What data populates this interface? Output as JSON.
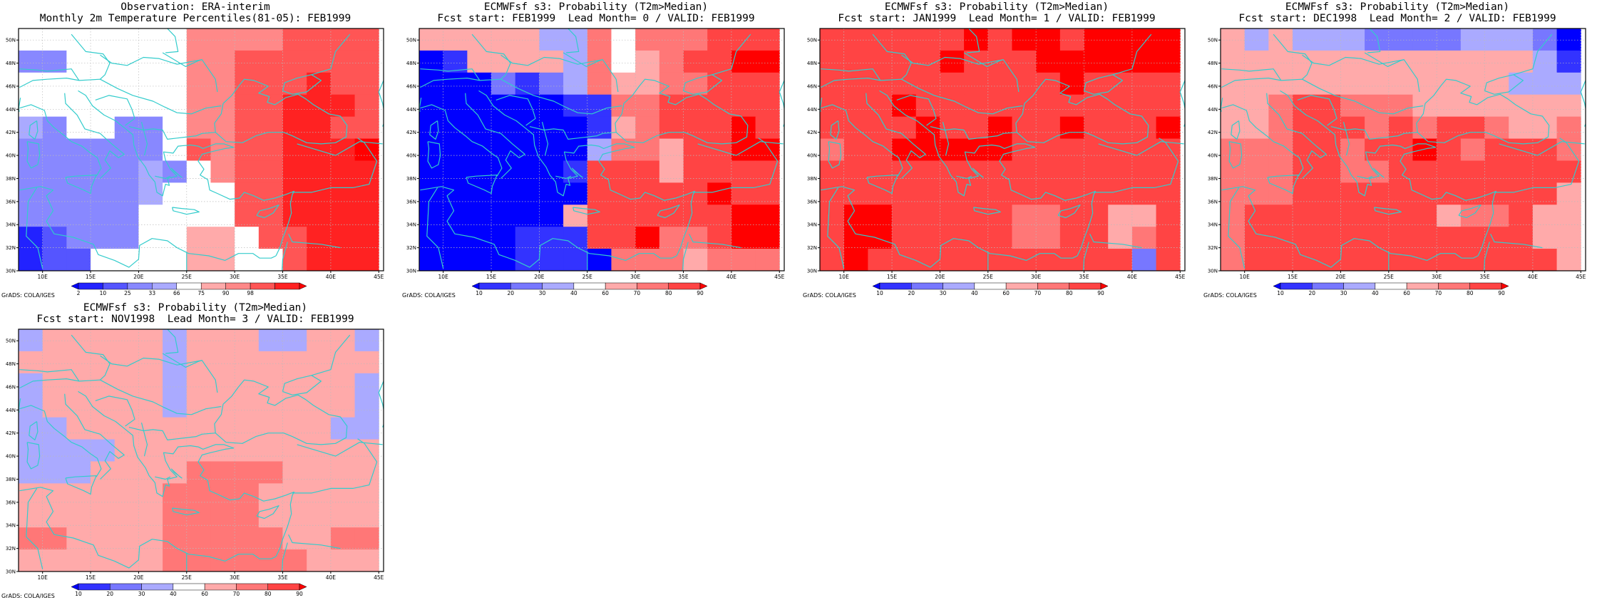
{
  "credit": "GrADS: COLA/IGES",
  "colors": {
    "coast": "#33cccc",
    "grid": "#bbbbbb",
    "border": "#000000",
    "prob_bins": [
      "#0000ff",
      "#3333ff",
      "#7777ff",
      "#aaaaff",
      "#ffffff",
      "#ffaaaa",
      "#ff7777",
      "#ff4444",
      "#ff0000"
    ],
    "pct_bins": [
      "#0000ff",
      "#2222ff",
      "#5555ff",
      "#8888ff",
      "#aaaaff",
      "#ffffff",
      "#ffaaaa",
      "#ff8888",
      "#ff5555",
      "#ff2222",
      "#ff0000"
    ]
  },
  "map": {
    "lon_ticks": [
      "10E",
      "15E",
      "20E",
      "25E",
      "30E",
      "35E",
      "40E",
      "45E"
    ],
    "lat_ticks": [
      "50N",
      "48N",
      "46N",
      "44N",
      "42N",
      "40N",
      "38N",
      "36N",
      "34N",
      "32N",
      "30N"
    ],
    "lon_range": [
      7.5,
      45.5
    ],
    "lat_range": [
      30,
      51
    ],
    "cell_size_deg": 2.5
  },
  "legends": {
    "obs": [
      "2",
      "10",
      "25",
      "33",
      "66",
      "75",
      "90",
      "98"
    ],
    "prob": [
      "10",
      "20",
      "30",
      "40",
      "60",
      "70",
      "80",
      "90"
    ]
  },
  "panels": [
    {
      "title1": "Observation: ERA-interim",
      "title2": "Monthly 2m Temperature Percentiles(81-05): FEB1999",
      "legend": "obs",
      "palette": "pct_bins",
      "cells": [
        [
          5,
          5,
          5,
          5,
          5,
          5,
          5,
          7,
          7,
          7,
          7,
          8,
          8,
          8,
          8
        ],
        [
          3,
          3,
          5,
          5,
          5,
          5,
          5,
          7,
          7,
          8,
          8,
          8,
          8,
          8,
          8
        ],
        [
          5,
          5,
          5,
          5,
          5,
          5,
          5,
          7,
          7,
          8,
          8,
          8,
          9,
          8,
          8
        ],
        [
          5,
          5,
          5,
          5,
          5,
          5,
          5,
          7,
          7,
          8,
          8,
          9,
          9,
          9,
          8
        ],
        [
          4,
          3,
          5,
          5,
          3,
          3,
          5,
          7,
          7,
          8,
          8,
          9,
          9,
          8,
          8
        ],
        [
          3,
          3,
          3,
          3,
          3,
          3,
          5,
          8,
          7,
          8,
          8,
          9,
          9,
          9,
          10
        ],
        [
          3,
          3,
          3,
          3,
          3,
          4,
          3,
          5,
          7,
          8,
          8,
          9,
          9,
          9,
          9
        ],
        [
          3,
          3,
          3,
          3,
          3,
          4,
          5,
          5,
          5,
          8,
          8,
          9,
          9,
          9,
          9
        ],
        [
          3,
          3,
          3,
          3,
          3,
          5,
          5,
          5,
          5,
          8,
          8,
          9,
          9,
          9,
          9
        ],
        [
          1,
          2,
          3,
          3,
          3,
          5,
          5,
          6,
          6,
          5,
          8,
          8,
          9,
          9,
          9
        ],
        [
          1,
          2,
          2,
          5,
          5,
          5,
          5,
          6,
          6,
          5,
          5,
          8,
          9,
          9,
          9
        ]
      ]
    },
    {
      "title1": "ECMWFsf s3: Probability (T2m>Median)",
      "title2": "Fcst start: FEB1999  Lead Month= 0 / VALID: FEB1999",
      "legend": "prob",
      "palette": "prob_bins",
      "cells": [
        [
          5,
          5,
          5,
          5,
          5,
          3,
          3,
          6,
          4,
          6,
          6,
          6,
          7,
          7,
          7
        ],
        [
          0,
          1,
          5,
          5,
          5,
          5,
          3,
          6,
          4,
          5,
          6,
          7,
          7,
          8,
          8
        ],
        [
          0,
          0,
          0,
          2,
          1,
          2,
          3,
          6,
          5,
          5,
          6,
          6,
          7,
          7,
          7
        ],
        [
          0,
          0,
          0,
          0,
          0,
          0,
          1,
          1,
          6,
          6,
          7,
          7,
          7,
          7,
          7
        ],
        [
          0,
          0,
          0,
          0,
          0,
          0,
          0,
          1,
          5,
          6,
          7,
          7,
          7,
          8,
          7
        ],
        [
          0,
          0,
          0,
          0,
          0,
          0,
          0,
          3,
          6,
          6,
          5,
          7,
          7,
          8,
          8
        ],
        [
          0,
          0,
          0,
          0,
          0,
          0,
          1,
          7,
          7,
          7,
          5,
          7,
          7,
          7,
          7
        ],
        [
          0,
          0,
          0,
          0,
          0,
          0,
          0,
          7,
          7,
          7,
          7,
          7,
          8,
          7,
          7
        ],
        [
          0,
          0,
          0,
          0,
          0,
          0,
          5,
          7,
          7,
          7,
          7,
          7,
          7,
          8,
          8
        ],
        [
          0,
          0,
          0,
          0,
          1,
          1,
          1,
          7,
          7,
          8,
          6,
          6,
          7,
          8,
          8
        ],
        [
          0,
          0,
          0,
          0,
          1,
          1,
          1,
          0,
          6,
          6,
          6,
          5,
          6,
          6,
          6
        ]
      ]
    },
    {
      "title1": "ECMWFsf s3: Probability (T2m>Median)",
      "title2": "Fcst start: JAN1999  Lead Month= 1 / VALID: FEB1999",
      "legend": "prob",
      "palette": "prob_bins",
      "cells": [
        [
          7,
          7,
          7,
          7,
          7,
          7,
          8,
          7,
          8,
          8,
          7,
          8,
          8,
          8,
          8
        ],
        [
          7,
          7,
          7,
          7,
          7,
          8,
          7,
          7,
          7,
          8,
          8,
          8,
          8,
          8,
          8
        ],
        [
          7,
          7,
          7,
          7,
          7,
          7,
          7,
          7,
          7,
          7,
          8,
          7,
          7,
          7,
          7
        ],
        [
          7,
          7,
          7,
          8,
          7,
          7,
          7,
          7,
          7,
          7,
          7,
          7,
          7,
          7,
          7
        ],
        [
          7,
          7,
          7,
          7,
          8,
          7,
          7,
          8,
          7,
          7,
          8,
          7,
          7,
          7,
          8
        ],
        [
          6,
          7,
          7,
          8,
          8,
          8,
          8,
          8,
          7,
          7,
          7,
          7,
          7,
          7,
          7
        ],
        [
          7,
          7,
          7,
          7,
          7,
          7,
          7,
          7,
          7,
          7,
          7,
          7,
          7,
          7,
          7
        ],
        [
          7,
          7,
          7,
          7,
          7,
          7,
          7,
          7,
          7,
          7,
          7,
          7,
          7,
          7,
          7
        ],
        [
          7,
          8,
          8,
          7,
          7,
          7,
          7,
          7,
          6,
          6,
          7,
          7,
          5,
          5,
          7
        ],
        [
          7,
          8,
          8,
          7,
          7,
          7,
          7,
          7,
          6,
          6,
          7,
          7,
          5,
          6,
          7
        ],
        [
          7,
          8,
          7,
          7,
          7,
          7,
          7,
          7,
          7,
          7,
          7,
          7,
          7,
          2,
          7
        ]
      ]
    },
    {
      "title1": "ECMWFsf s3: Probability (T2m>Median)",
      "title2": "Fcst start: DEC1998  Lead Month= 2 / VALID: FEB1999",
      "legend": "prob",
      "palette": "prob_bins",
      "cells": [
        [
          5,
          3,
          5,
          3,
          3,
          3,
          2,
          2,
          2,
          2,
          3,
          3,
          3,
          2,
          0
        ],
        [
          5,
          5,
          5,
          5,
          5,
          5,
          5,
          5,
          5,
          5,
          5,
          5,
          5,
          3,
          1
        ],
        [
          5,
          5,
          5,
          5,
          5,
          5,
          5,
          5,
          5,
          5,
          5,
          5,
          3,
          3,
          3
        ],
        [
          5,
          5,
          6,
          7,
          7,
          6,
          6,
          6,
          5,
          5,
          5,
          5,
          5,
          5,
          5
        ],
        [
          5,
          5,
          6,
          7,
          7,
          7,
          6,
          7,
          6,
          7,
          7,
          6,
          5,
          5,
          6
        ],
        [
          6,
          6,
          6,
          7,
          7,
          6,
          7,
          7,
          8,
          7,
          6,
          7,
          7,
          7,
          6
        ],
        [
          6,
          6,
          6,
          7,
          7,
          6,
          6,
          7,
          7,
          7,
          7,
          7,
          7,
          7,
          7
        ],
        [
          6,
          6,
          6,
          7,
          7,
          7,
          7,
          7,
          7,
          7,
          7,
          7,
          7,
          7,
          5
        ],
        [
          6,
          7,
          7,
          7,
          7,
          7,
          7,
          7,
          7,
          5,
          6,
          6,
          7,
          5,
          5
        ],
        [
          6,
          7,
          7,
          7,
          7,
          7,
          7,
          7,
          7,
          7,
          7,
          7,
          7,
          5,
          5
        ],
        [
          6,
          7,
          7,
          7,
          7,
          7,
          7,
          7,
          7,
          7,
          7,
          7,
          7,
          7,
          5
        ]
      ]
    },
    {
      "title1": "ECMWFsf s3: Probability (T2m>Median)",
      "title2": "Fcst start: NOV1998  Lead Month= 3 / VALID: FEB1999",
      "legend": "prob",
      "palette": "prob_bins",
      "cells": [
        [
          3,
          5,
          5,
          5,
          5,
          5,
          3,
          5,
          5,
          5,
          3,
          3,
          5,
          5,
          3
        ],
        [
          5,
          5,
          5,
          5,
          5,
          5,
          3,
          5,
          5,
          5,
          5,
          5,
          5,
          5,
          5
        ],
        [
          3,
          5,
          5,
          5,
          5,
          5,
          3,
          5,
          5,
          5,
          5,
          5,
          5,
          5,
          3
        ],
        [
          3,
          5,
          5,
          5,
          5,
          5,
          3,
          5,
          5,
          5,
          5,
          5,
          5,
          5,
          3
        ],
        [
          3,
          3,
          5,
          5,
          5,
          5,
          5,
          5,
          5,
          5,
          5,
          5,
          5,
          3,
          3
        ],
        [
          3,
          3,
          3,
          3,
          5,
          5,
          5,
          5,
          5,
          5,
          5,
          5,
          5,
          5,
          5
        ],
        [
          3,
          3,
          3,
          5,
          5,
          5,
          5,
          6,
          6,
          6,
          6,
          5,
          5,
          5,
          5
        ],
        [
          5,
          5,
          5,
          5,
          5,
          5,
          6,
          6,
          6,
          6,
          5,
          5,
          5,
          5,
          5
        ],
        [
          5,
          5,
          5,
          5,
          5,
          5,
          6,
          6,
          6,
          6,
          5,
          5,
          5,
          5,
          5
        ],
        [
          6,
          6,
          5,
          5,
          5,
          5,
          6,
          6,
          6,
          6,
          6,
          5,
          5,
          6,
          6
        ],
        [
          5,
          5,
          5,
          5,
          5,
          5,
          6,
          6,
          6,
          6,
          6,
          6,
          5,
          5,
          5
        ]
      ]
    }
  ]
}
